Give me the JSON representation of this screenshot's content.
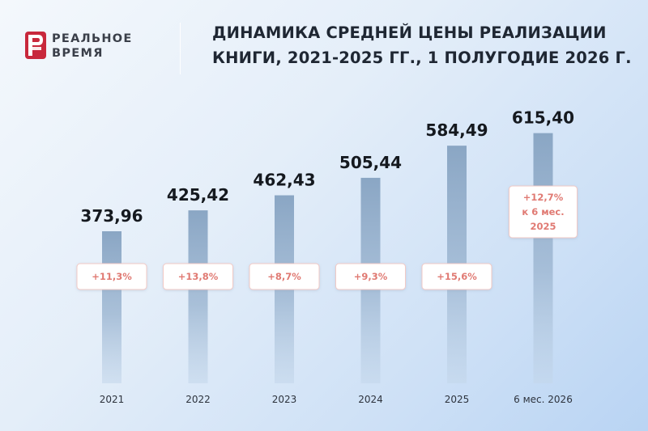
{
  "brand": {
    "line1": "РЕАЛЬНОЕ",
    "line2": "ВРЕМЯ",
    "mark_color": "#c8283c",
    "text_color": "#3a3f49"
  },
  "header": {
    "title_line1": "ДИНАМИКА СРЕДНЕЙ ЦЕНЫ РЕАЛИЗАЦИИ",
    "title_line2": "КНИГИ, 2021-2025 ГГ., 1 ПОЛУГОДИЕ 2026 Г."
  },
  "chart_data": {
    "type": "bar",
    "title": "ДИНАМИКА СРЕДНЕЙ ЦЕНЫ РЕАЛИЗАЦИИ КНИГИ, 2021-2025 ГГ., 1 ПОЛУГОДИЕ 2026 Г.",
    "categories": [
      "2021",
      "2022",
      "2023",
      "2024",
      "2025",
      "6 мес. 2026"
    ],
    "values": [
      373.96,
      425.42,
      462.43,
      505.44,
      584.49,
      615.4
    ],
    "value_labels": [
      "373,96",
      "425,42",
      "462,43",
      "505,44",
      "584,49",
      "615,40"
    ],
    "annotations": [
      [
        "+11,3%"
      ],
      [
        "+13,8%"
      ],
      [
        "+8,7%"
      ],
      [
        "+9,3%"
      ],
      [
        "+15,6%"
      ],
      [
        "+12,7%",
        "к 6 мес.",
        "2025"
      ]
    ],
    "ylim": [
      0,
      650
    ],
    "grid": false,
    "legend": "none",
    "colors": {
      "bar": "#8ea9c6",
      "value_text": "#15191f",
      "annotation_text": "#e07a73",
      "annotation_border": "#f2c9c5"
    }
  }
}
